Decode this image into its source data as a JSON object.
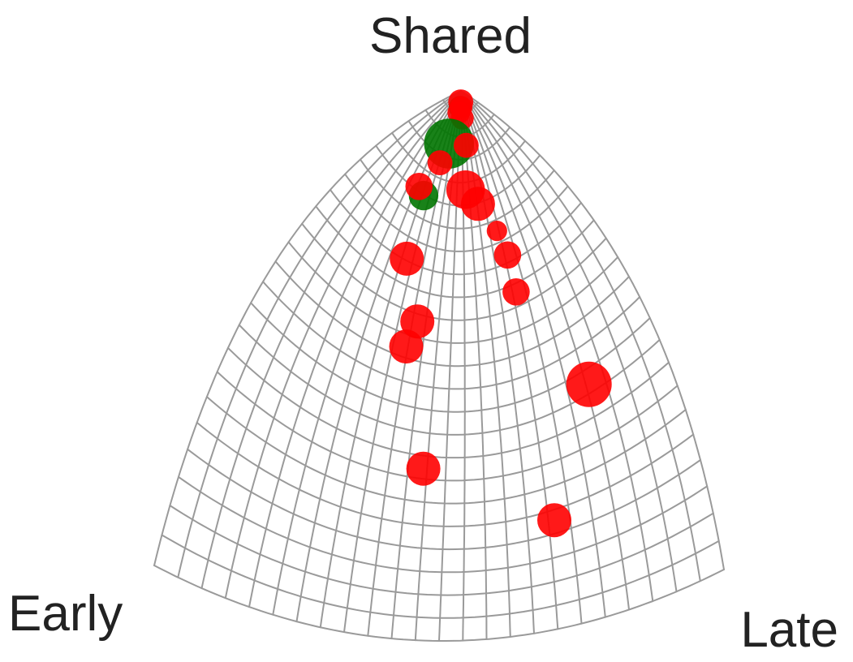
{
  "chart_data": {
    "type": "scatter",
    "title": "",
    "vertex_labels": {
      "top": "Shared",
      "left": "Early",
      "right": "Late"
    },
    "grid": true,
    "colors": {
      "grid": "#9a9a9a",
      "red": "#ff0000",
      "green": "#007400"
    },
    "points_note_units": "u = position from Early (0) to Late (1); v = position from base (0) to Shared (1); r = relative marker size",
    "points": [
      {
        "u": 0.49,
        "v": 0.97,
        "r": 1.0,
        "color": "green"
      },
      {
        "u": 0.51,
        "v": 0.98,
        "r": 1.1,
        "color": "red"
      },
      {
        "u": 0.53,
        "v": 0.97,
        "r": 1.0,
        "color": "red"
      },
      {
        "u": 0.56,
        "v": 0.95,
        "r": 1.0,
        "color": "red"
      },
      {
        "u": 0.46,
        "v": 0.96,
        "r": 1.0,
        "color": "red"
      },
      {
        "u": 0.38,
        "v": 0.9,
        "r": 2.2,
        "color": "green"
      },
      {
        "u": 0.34,
        "v": 0.86,
        "r": 1.1,
        "color": "red"
      },
      {
        "u": 0.3,
        "v": 0.79,
        "r": 1.3,
        "color": "green"
      },
      {
        "u": 0.26,
        "v": 0.8,
        "r": 1.2,
        "color": "red"
      },
      {
        "u": 0.59,
        "v": 0.9,
        "r": 1.1,
        "color": "red"
      },
      {
        "u": 0.56,
        "v": 0.82,
        "r": 1.7,
        "color": "red"
      },
      {
        "u": 0.63,
        "v": 0.79,
        "r": 1.5,
        "color": "red"
      },
      {
        "u": 0.7,
        "v": 0.73,
        "r": 0.9,
        "color": "red"
      },
      {
        "u": 0.72,
        "v": 0.68,
        "r": 1.2,
        "color": "red"
      },
      {
        "u": 0.72,
        "v": 0.61,
        "r": 1.2,
        "color": "red"
      },
      {
        "u": 0.31,
        "v": 0.67,
        "r": 1.5,
        "color": "red"
      },
      {
        "u": 0.39,
        "v": 0.57,
        "r": 1.5,
        "color": "red"
      },
      {
        "u": 0.37,
        "v": 0.52,
        "r": 1.5,
        "color": "red"
      },
      {
        "u": 0.84,
        "v": 0.39,
        "r": 2.0,
        "color": "red"
      },
      {
        "u": 0.45,
        "v": 0.31,
        "r": 1.5,
        "color": "red"
      },
      {
        "u": 0.72,
        "v": 0.19,
        "r": 1.5,
        "color": "red"
      }
    ]
  }
}
